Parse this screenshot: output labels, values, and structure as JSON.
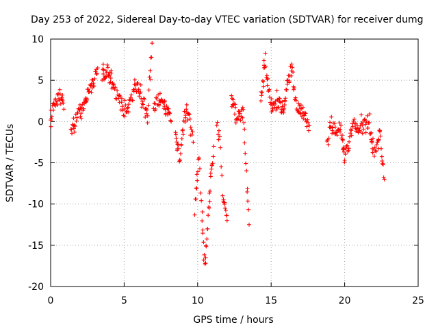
{
  "chart_data": {
    "type": "scatter",
    "title": "Day 253 of 2022, Sidereal Day-to-day VTEC variation (SDTVAR) for receiver dumg",
    "xlabel": "GPS time / hours",
    "ylabel": "SDTVAR / TECUs",
    "xlim": [
      0,
      25
    ],
    "ylim": [
      -20,
      10
    ],
    "xticks": [
      "0",
      "5",
      "10",
      "15",
      "20",
      "25"
    ],
    "yticks": [
      "10",
      "5",
      "0",
      "-5",
      "-10",
      "-15",
      "-20"
    ],
    "grid": true,
    "marker": "+",
    "color": "#ff0000",
    "segments": [
      {
        "x": [
          0.0,
          0.3,
          0.6,
          0.9
        ],
        "y": [
          0.5,
          2.5,
          3.0,
          1.5
        ]
      },
      {
        "x": [
          1.4,
          1.8,
          2.2,
          2.6,
          3.0,
          3.2
        ],
        "y": [
          -1.0,
          0.5,
          2.0,
          3.5,
          5.0,
          6.5
        ]
      },
      {
        "x": [
          3.5,
          3.9,
          4.3,
          4.7,
          5.0,
          5.4,
          5.8,
          6.2,
          6.6,
          6.9
        ],
        "y": [
          5.5,
          6.5,
          4.0,
          2.5,
          1.0,
          2.0,
          4.5,
          2.5,
          1.5,
          9.5
        ]
      },
      {
        "x": [
          7.0,
          7.4,
          7.8,
          8.2
        ],
        "y": [
          1.5,
          3.0,
          2.0,
          0.0
        ]
      },
      {
        "x": [
          8.5,
          8.8,
          9.1,
          9.4,
          9.7
        ],
        "y": [
          -2.0,
          -4.5,
          0.5,
          1.0,
          -2.5
        ]
      },
      {
        "x": [
          9.8,
          10.1,
          10.3,
          10.5,
          10.8,
          11.1
        ],
        "y": [
          -11.0,
          -4.0,
          -12.0,
          -17.5,
          -8.5,
          -3.0
        ]
      },
      {
        "x": [
          11.3,
          11.5,
          11.7,
          12.0
        ],
        "y": [
          0.0,
          -2.0,
          -9.0,
          -12.0
        ]
      },
      {
        "x": [
          12.3,
          12.7,
          13.1,
          13.5
        ],
        "y": [
          2.5,
          0.5,
          0.8,
          -12.5
        ]
      },
      {
        "x": [
          14.3,
          14.6,
          14.9,
          15.2,
          15.5,
          15.8,
          16.1,
          16.4,
          16.7,
          17.0,
          17.3,
          17.6
        ],
        "y": [
          3.0,
          7.5,
          2.5,
          1.5,
          2.5,
          1.0,
          4.5,
          6.5,
          2.0,
          1.5,
          0.5,
          -0.5
        ]
      },
      {
        "x": [
          18.8,
          19.1,
          19.4,
          19.7,
          20.0,
          20.3,
          20.6,
          20.9,
          21.2,
          21.5,
          21.8,
          22.1,
          22.4,
          22.7
        ],
        "y": [
          -3.0,
          0.0,
          -1.0,
          -0.5,
          -4.0,
          -3.0,
          0.5,
          -1.5,
          -0.5,
          0.5,
          -2.0,
          -4.0,
          -1.0,
          -7.0
        ]
      }
    ]
  }
}
